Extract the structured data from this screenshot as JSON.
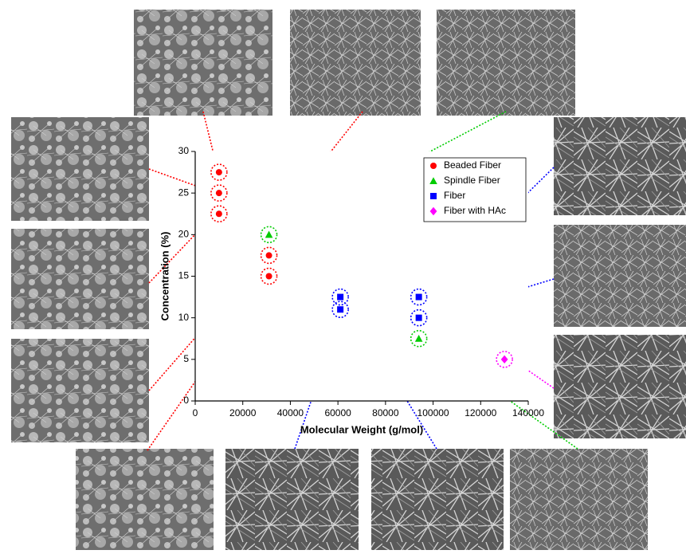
{
  "chart_data": {
    "type": "scatter",
    "x_label": "Molecular Weight (g/mol)",
    "y_label": "Concentration (%)",
    "xlim": [
      0,
      140000
    ],
    "xticks": [
      0,
      20000,
      40000,
      60000,
      80000,
      100000,
      120000,
      140000
    ],
    "ylim": [
      0,
      30
    ],
    "yticks": [
      0,
      5,
      10,
      15,
      20,
      25,
      30
    ],
    "legend": "upper right",
    "series": [
      {
        "name": "Beaded Fiber",
        "color": "#ff0000",
        "marker": "circle",
        "x": [
          10000,
          10000,
          10000,
          31000,
          31000
        ],
        "values": [
          27.5,
          25,
          22.5,
          17.5,
          15
        ]
      },
      {
        "name": "Spindle Fiber",
        "color": "#00cc00",
        "marker": "triangle",
        "x": [
          31000,
          94000
        ],
        "values": [
          20,
          7.5
        ]
      },
      {
        "name": "Fiber",
        "color": "#0000ff",
        "marker": "square",
        "x": [
          61000,
          61000,
          94000,
          94000
        ],
        "values": [
          12.5,
          11,
          12.5,
          10
        ]
      },
      {
        "name": "Fiber with HAc",
        "color": "#ff00ff",
        "marker": "diamond",
        "x": [
          130000
        ],
        "values": [
          5
        ]
      }
    ]
  }
}
